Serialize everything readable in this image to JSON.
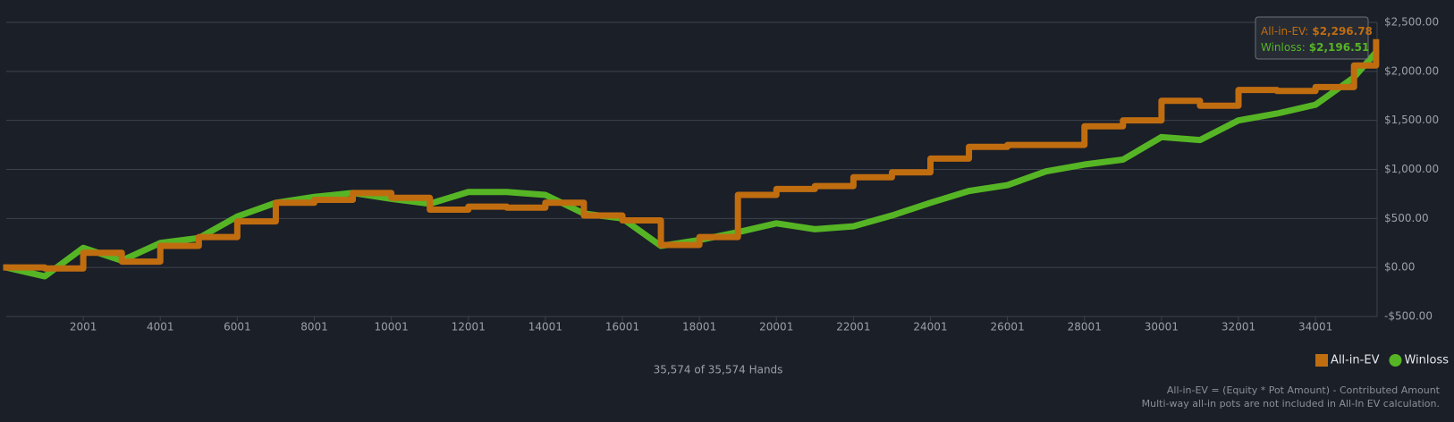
{
  "chart_data": {
    "type": "line",
    "x": [
      1,
      1001,
      2001,
      3001,
      4001,
      5001,
      6001,
      7001,
      8001,
      9001,
      10001,
      11001,
      12001,
      13001,
      14001,
      15001,
      16001,
      17001,
      18001,
      19001,
      20001,
      21001,
      22001,
      23001,
      24001,
      25001,
      26001,
      27001,
      28001,
      29001,
      30001,
      31001,
      32001,
      33001,
      34001,
      35001,
      35574
    ],
    "series": [
      {
        "name": "All-in-EV",
        "color": "#c06d10",
        "marker": "square",
        "values": [
          0,
          -10,
          150,
          60,
          220,
          310,
          470,
          660,
          690,
          760,
          710,
          590,
          620,
          610,
          660,
          530,
          480,
          230,
          310,
          740,
          800,
          830,
          920,
          970,
          1110,
          1230,
          1250,
          1250,
          1440,
          1500,
          1700,
          1650,
          1810,
          1800,
          1840,
          2060,
          2296.78
        ]
      },
      {
        "name": "Winloss",
        "color": "#56b524",
        "marker": "circle",
        "values": [
          0,
          -90,
          200,
          70,
          250,
          300,
          520,
          660,
          720,
          760,
          700,
          650,
          770,
          770,
          740,
          550,
          500,
          220,
          280,
          360,
          450,
          390,
          420,
          530,
          660,
          780,
          840,
          980,
          1050,
          1100,
          1330,
          1300,
          1500,
          1570,
          1660,
          1940,
          2196.51
        ]
      }
    ],
    "xlim": [
      1,
      35600
    ],
    "xticks": [
      2001,
      4001,
      6001,
      8001,
      10001,
      12001,
      14001,
      16001,
      18001,
      20001,
      22001,
      24001,
      26001,
      28001,
      30001,
      32001,
      34001
    ],
    "ylim": [
      -500,
      2500
    ],
    "yticks": [
      {
        "value": -500,
        "label": "-$500.00"
      },
      {
        "value": 0,
        "label": "$0.00"
      },
      {
        "value": 500,
        "label": "$500.00"
      },
      {
        "value": 1000,
        "label": "$1,000.00"
      },
      {
        "value": 1500,
        "label": "$1,500.00"
      },
      {
        "value": 2000,
        "label": "$2,000.00"
      },
      {
        "value": 2500,
        "label": "$2,500.00"
      }
    ],
    "grid": true,
    "legend": "bottom-right",
    "tooltip": [
      {
        "label": "All-in-EV:",
        "value": "$2,296.78"
      },
      {
        "label": "Winloss:",
        "value": "$2,196.51"
      }
    ],
    "caption": "35,574 of 35,574 Hands",
    "footnotes": [
      "All-in-EV = (Equity * Pot Amount) - Contributed Amount",
      "Multi-way all-in pots are not included in All-In EV calculation."
    ]
  }
}
